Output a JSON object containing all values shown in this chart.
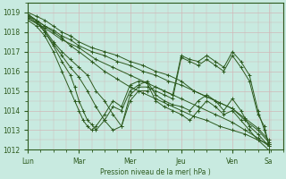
{
  "bg_color": "#c8eae0",
  "grid_color_major": "#b8c8c0",
  "grid_color_minor": "#d0b8b8",
  "line_color": "#2d5a1e",
  "marker": "+",
  "xlabel": "Pression niveau de la mer( hPa )",
  "ylim": [
    1012,
    1019.5
  ],
  "yticks": [
    1012,
    1013,
    1014,
    1015,
    1016,
    1017,
    1018,
    1019
  ],
  "xtick_labels": [
    "Lun",
    "Mar",
    "Mer",
    "Jeu",
    "Ven",
    "Sa"
  ],
  "xtick_pos": [
    0,
    24,
    48,
    72,
    96,
    113
  ],
  "xlim": [
    0,
    120
  ],
  "lines": [
    [
      0,
      1018.9,
      4,
      1018.6,
      8,
      1018.3,
      12,
      1018.0,
      16,
      1017.7,
      20,
      1017.3,
      24,
      1017.0,
      30,
      1016.5,
      36,
      1016.0,
      42,
      1015.6,
      48,
      1015.2,
      54,
      1014.9,
      60,
      1014.6,
      66,
      1014.3,
      72,
      1014.0,
      78,
      1013.7,
      84,
      1013.5,
      90,
      1013.2,
      96,
      1013.0,
      102,
      1012.8,
      108,
      1012.5,
      113,
      1012.3
    ],
    [
      0,
      1019.0,
      4,
      1018.8,
      8,
      1018.6,
      12,
      1018.3,
      16,
      1018.0,
      20,
      1017.8,
      24,
      1017.5,
      30,
      1017.2,
      36,
      1017.0,
      42,
      1016.8,
      48,
      1016.5,
      54,
      1016.3,
      60,
      1016.0,
      66,
      1015.8,
      72,
      1015.5,
      78,
      1015.0,
      84,
      1014.7,
      90,
      1014.4,
      96,
      1014.1,
      102,
      1013.5,
      108,
      1013.0,
      113,
      1012.4
    ],
    [
      0,
      1018.8,
      4,
      1018.6,
      8,
      1018.3,
      12,
      1018.1,
      16,
      1017.8,
      20,
      1017.6,
      24,
      1017.3,
      30,
      1017.0,
      36,
      1016.8,
      42,
      1016.5,
      48,
      1016.3,
      54,
      1016.0,
      60,
      1015.8,
      66,
      1015.5,
      72,
      1015.3,
      78,
      1015.0,
      84,
      1014.7,
      90,
      1014.4,
      96,
      1014.1,
      102,
      1013.6,
      108,
      1013.1,
      113,
      1012.5
    ],
    [
      0,
      1018.7,
      8,
      1018.2,
      16,
      1017.6,
      24,
      1017.2,
      32,
      1016.6,
      40,
      1016.2,
      48,
      1015.8,
      56,
      1015.4,
      64,
      1015.0,
      72,
      1014.6,
      80,
      1014.2,
      88,
      1013.8,
      96,
      1013.4,
      102,
      1013.0,
      108,
      1012.6,
      113,
      1012.2
    ],
    [
      0,
      1018.9,
      4,
      1018.6,
      8,
      1018.1,
      12,
      1017.5,
      16,
      1017.0,
      20,
      1016.6,
      24,
      1016.2,
      28,
      1015.8,
      32,
      1015.0,
      36,
      1014.5,
      40,
      1013.8,
      44,
      1013.2,
      48,
      1014.5,
      52,
      1015.0,
      56,
      1015.0,
      60,
      1015.2,
      64,
      1015.0,
      68,
      1014.8,
      72,
      1016.8,
      76,
      1016.6,
      80,
      1016.5,
      84,
      1016.8,
      88,
      1016.5,
      92,
      1016.2,
      96,
      1017.0,
      100,
      1016.5,
      104,
      1015.8,
      108,
      1014.0,
      111,
      1013.0,
      113,
      1012.3
    ],
    [
      0,
      1018.8,
      4,
      1018.5,
      8,
      1018.0,
      12,
      1017.4,
      16,
      1016.8,
      20,
      1016.2,
      24,
      1015.7,
      28,
      1015.0,
      32,
      1014.2,
      36,
      1013.5,
      40,
      1013.0,
      44,
      1013.2,
      48,
      1014.8,
      52,
      1015.2,
      56,
      1015.2,
      60,
      1015.0,
      64,
      1014.8,
      68,
      1014.6,
      72,
      1016.7,
      76,
      1016.5,
      80,
      1016.3,
      84,
      1016.6,
      88,
      1016.3,
      92,
      1016.0,
      96,
      1016.8,
      100,
      1016.2,
      104,
      1015.5,
      108,
      1013.8,
      111,
      1013.2,
      113,
      1012.3
    ],
    [
      0,
      1018.7,
      6,
      1018.3,
      8,
      1018.0,
      12,
      1017.3,
      16,
      1016.5,
      20,
      1015.8,
      22,
      1015.2,
      24,
      1014.5,
      26,
      1014.0,
      28,
      1013.5,
      30,
      1013.3,
      32,
      1013.0,
      36,
      1013.5,
      40,
      1014.2,
      44,
      1014.0,
      48,
      1015.0,
      52,
      1015.3,
      56,
      1015.5,
      60,
      1014.8,
      64,
      1014.5,
      68,
      1014.3,
      72,
      1014.2,
      76,
      1014.0,
      80,
      1014.5,
      84,
      1014.8,
      88,
      1014.5,
      92,
      1014.0,
      96,
      1014.6,
      100,
      1014.0,
      104,
      1013.2,
      108,
      1012.8,
      113,
      1012.2
    ],
    [
      0,
      1018.6,
      4,
      1018.3,
      8,
      1017.8,
      12,
      1017.0,
      16,
      1016.0,
      20,
      1015.0,
      22,
      1014.5,
      24,
      1014.0,
      26,
      1013.5,
      28,
      1013.2,
      30,
      1013.0,
      32,
      1013.2,
      36,
      1013.8,
      40,
      1014.5,
      44,
      1014.2,
      48,
      1015.3,
      52,
      1015.5,
      56,
      1015.4,
      60,
      1014.5,
      64,
      1014.2,
      68,
      1014.0,
      72,
      1013.8,
      76,
      1013.5,
      80,
      1014.0,
      84,
      1014.5,
      88,
      1014.2,
      92,
      1013.8,
      96,
      1014.0,
      100,
      1013.5,
      104,
      1013.0,
      108,
      1012.5,
      113,
      1012.0
    ]
  ]
}
